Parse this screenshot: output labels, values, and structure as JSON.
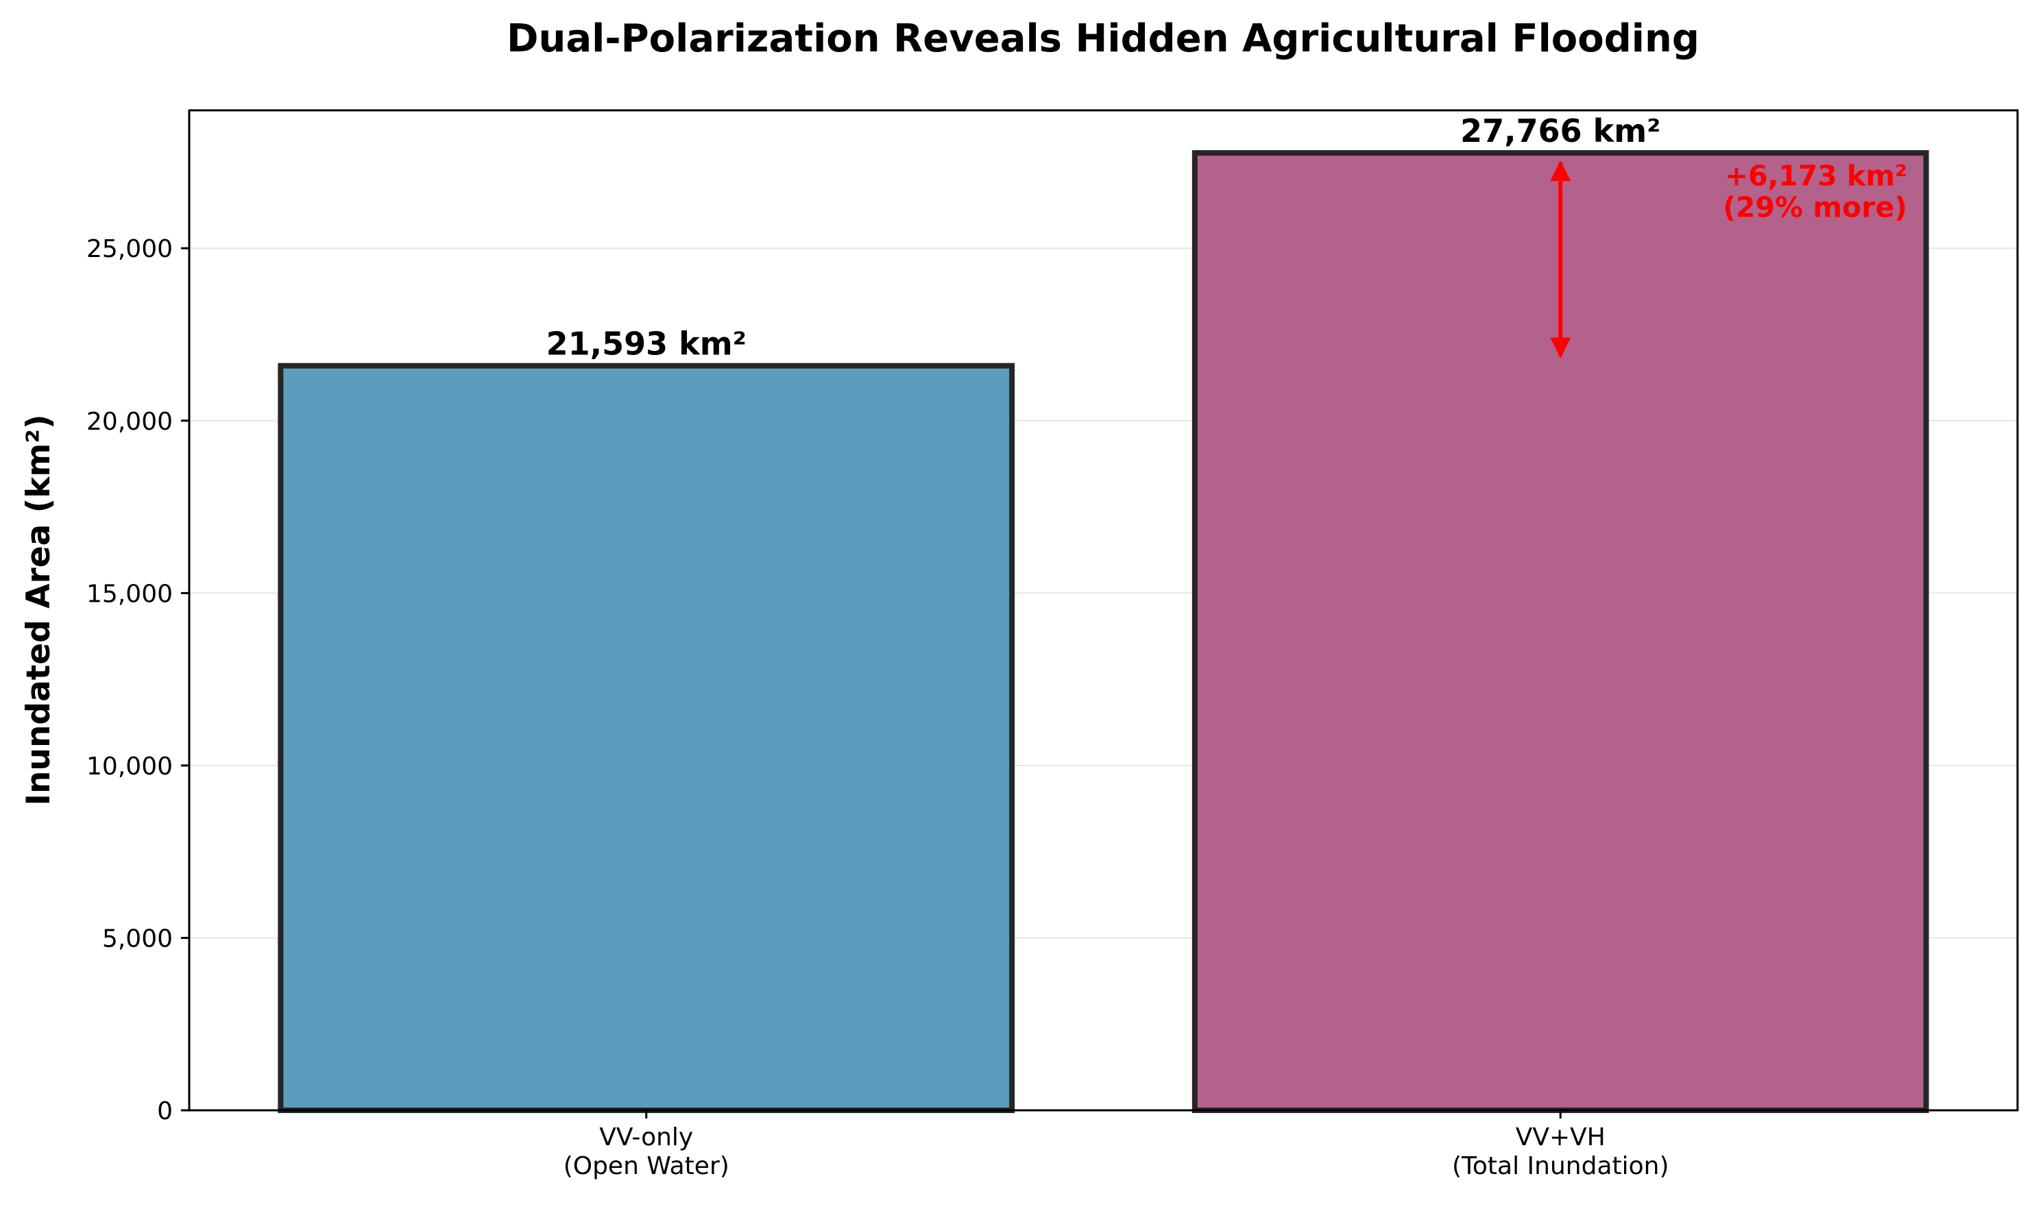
{
  "chart_data": {
    "type": "bar",
    "title": "Dual-Polarization Reveals Hidden Agricultural Flooding",
    "xlabel": "",
    "ylabel": "Inundated Area (km²)",
    "categories": [
      [
        "VV-only",
        "(Open Water)"
      ],
      [
        "VV+VH",
        "(Total Inundation)"
      ]
    ],
    "values": [
      21593,
      27766
    ],
    "value_labels": [
      "21,593 km²",
      "27,766 km²"
    ],
    "colors": [
      "#5a9dbd",
      "#b3628b"
    ],
    "edge_color": "#262626",
    "ylim": [
      0,
      29000
    ],
    "yticks": [
      0,
      5000,
      10000,
      15000,
      20000,
      25000
    ],
    "ytick_labels": [
      "0",
      "5,000",
      "10,000",
      "15,000",
      "20,000",
      "25,000"
    ],
    "grid": "horizontal",
    "annotation": {
      "lines": [
        "+6,173 km²",
        "(29% more)"
      ],
      "color": "#ff0000",
      "arrow_from": 21593,
      "arrow_to": 27766
    }
  }
}
